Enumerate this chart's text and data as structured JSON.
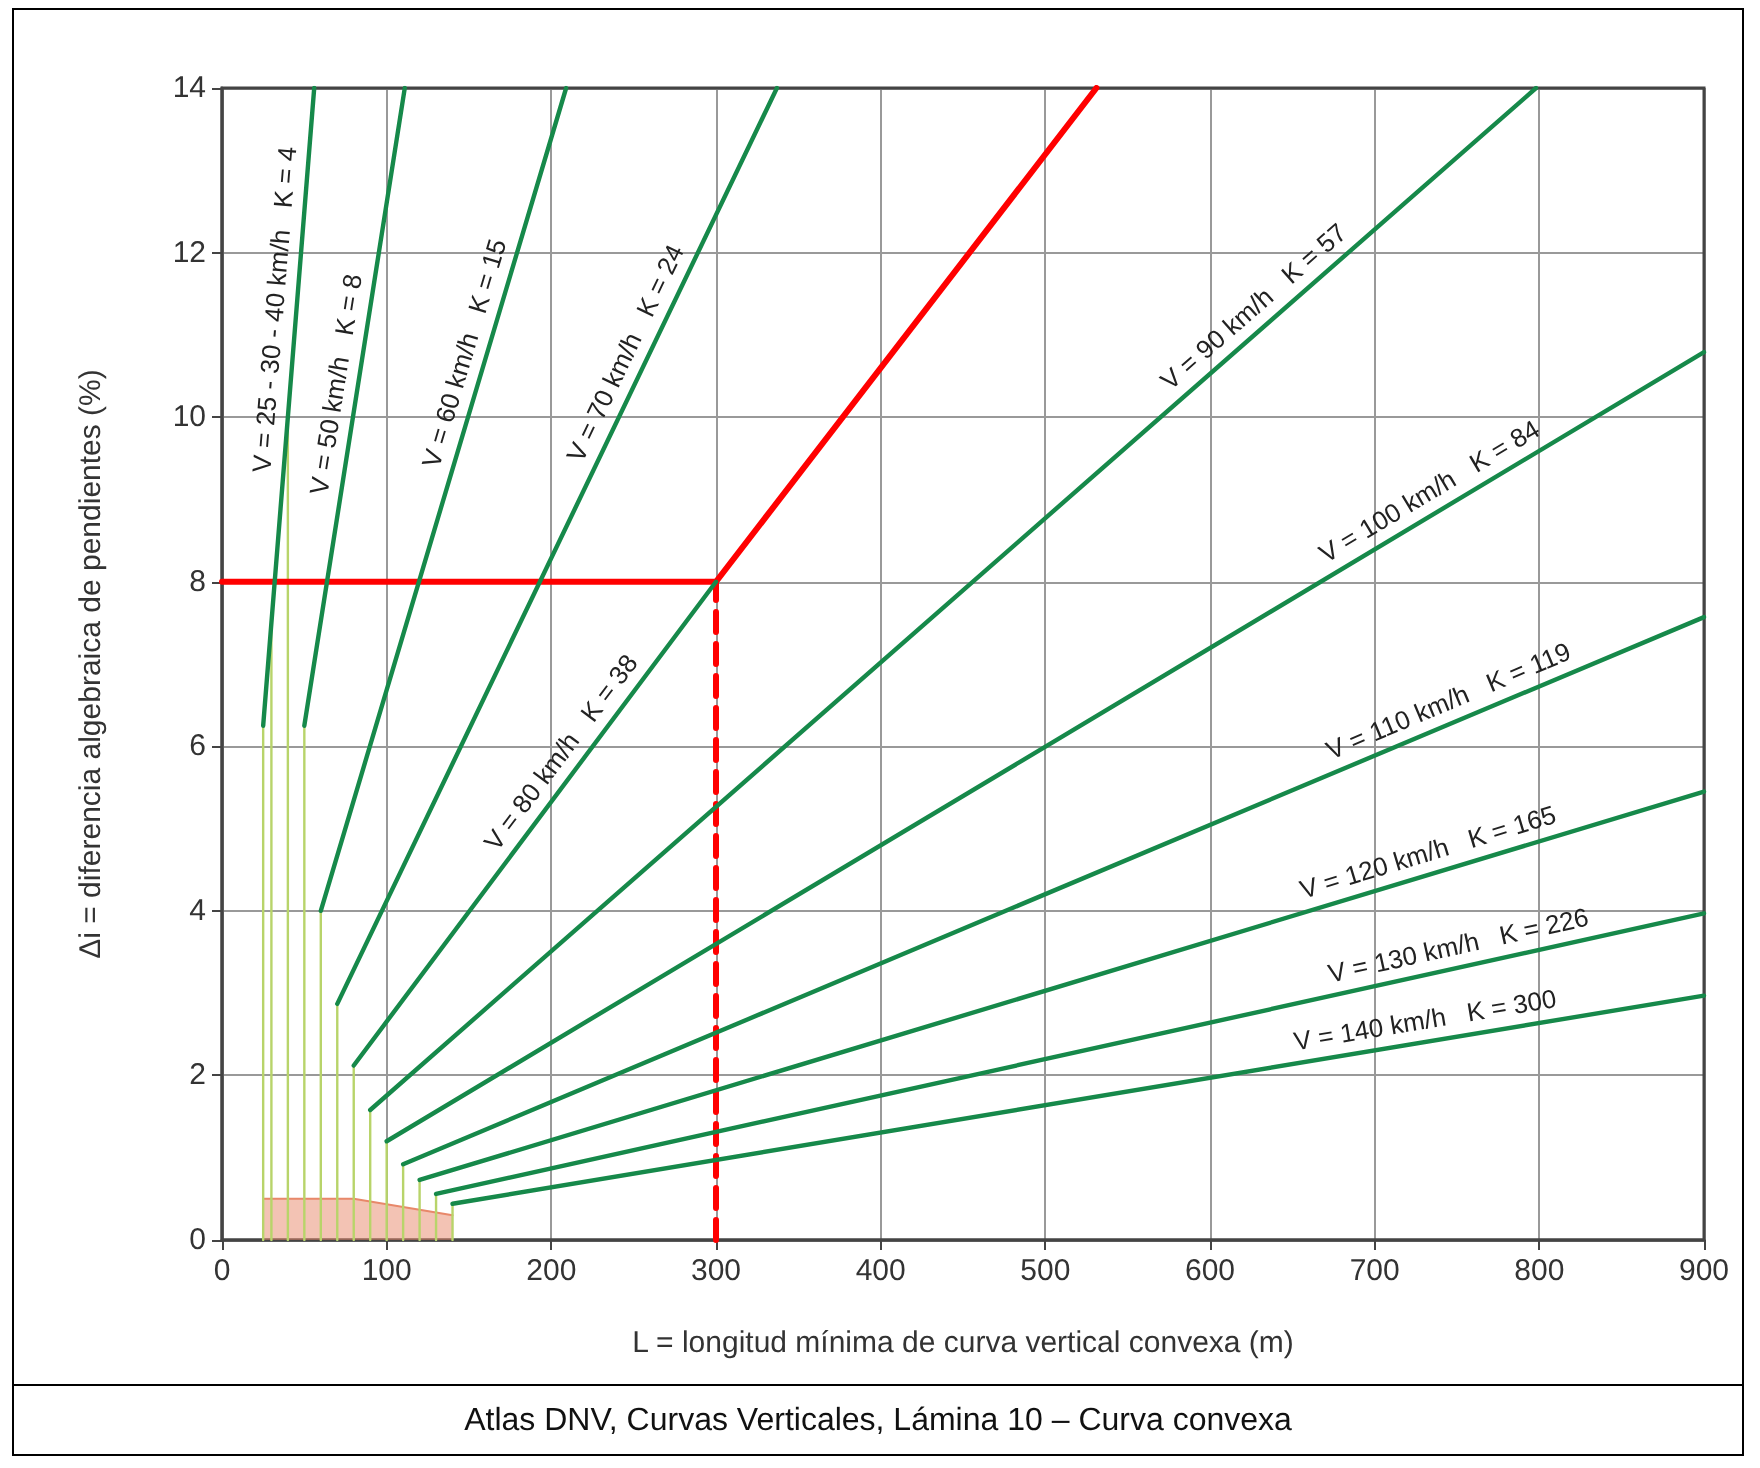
{
  "chart_data": {
    "type": "line",
    "xlabel": "L = longitud mínima de curva vertical convexa (m)",
    "ylabel": "Δi = diferencia algebraica de pendientes (%)",
    "xlim": [
      0,
      900
    ],
    "ylim": [
      0,
      14
    ],
    "xticks": [
      0,
      100,
      200,
      300,
      400,
      500,
      600,
      700,
      800,
      900
    ],
    "yticks": [
      0,
      2,
      4,
      6,
      8,
      10,
      12,
      14
    ],
    "grid": true,
    "marker": "none",
    "line_style": "solid",
    "annotations": [
      "Atlas DNV, Curvas Verticales, Lámina 10 – Curva convexa"
    ],
    "series": [
      {
        "type": "area",
        "color": "#e8886a",
        "x": [
          25,
          80,
          140
        ],
        "values": [
          0.5,
          0.5,
          0.3
        ]
      },
      {
        "color": "#b8d46a",
        "x": [
          25,
          25
        ],
        "values": [
          6.25,
          0
        ]
      },
      {
        "color": "#b8d46a",
        "x": [
          30,
          30
        ],
        "values": [
          7.5,
          0
        ]
      },
      {
        "color": "#b8d46a",
        "x": [
          40,
          40
        ],
        "values": [
          10,
          0
        ]
      },
      {
        "color": "#b8d46a",
        "x": [
          50,
          50
        ],
        "values": [
          6.25,
          0
        ]
      },
      {
        "color": "#b8d46a",
        "x": [
          60,
          60
        ],
        "values": [
          4,
          0
        ]
      },
      {
        "color": "#b8d46a",
        "x": [
          70,
          70
        ],
        "values": [
          2.87,
          0
        ]
      },
      {
        "color": "#b8d46a",
        "x": [
          80,
          80
        ],
        "values": [
          2.12,
          0
        ]
      },
      {
        "color": "#b8d46a",
        "x": [
          90,
          90
        ],
        "values": [
          1.58,
          0
        ]
      },
      {
        "color": "#b8d46a",
        "x": [
          100,
          100
        ],
        "values": [
          1.2,
          0
        ]
      },
      {
        "color": "#b8d46a",
        "x": [
          110,
          110
        ],
        "values": [
          0.92,
          0
        ]
      },
      {
        "color": "#b8d46a",
        "x": [
          120,
          120
        ],
        "values": [
          0.73,
          0
        ]
      },
      {
        "color": "#b8d46a",
        "x": [
          130,
          130
        ],
        "values": [
          0.56,
          0
        ]
      },
      {
        "color": "#b8d46a",
        "x": [
          140,
          140
        ],
        "values": [
          0.44,
          0
        ]
      },
      {
        "name": "V = 25 - 30 - 40 km/h   K = 4",
        "color": "#16894a",
        "x": [
          25,
          56
        ],
        "values": [
          6.25,
          14
        ]
      },
      {
        "name": "V = 50 km/h   K = 8",
        "color": "#16894a",
        "x": [
          50,
          111
        ],
        "values": [
          6.25,
          14
        ]
      },
      {
        "name": "V = 60 km/h   K = 15",
        "color": "#16894a",
        "x": [
          60,
          209
        ],
        "values": [
          4,
          14
        ]
      },
      {
        "name": "V = 70 km/h   K = 24",
        "color": "#16894a",
        "x": [
          70,
          337
        ],
        "values": [
          2.87,
          14
        ]
      },
      {
        "name": "V = 80 km/h   K = 38",
        "color": "#16894a",
        "x": [
          80,
          300
        ],
        "values": [
          2.12,
          8
        ]
      },
      {
        "name": "V = 90 km/h   K = 57",
        "color": "#16894a",
        "x": [
          90,
          798
        ],
        "values": [
          1.58,
          14
        ]
      },
      {
        "name": "V = 100 km/h   K = 84",
        "color": "#16894a",
        "x": [
          100,
          900
        ],
        "values": [
          1.2,
          10.79
        ]
      },
      {
        "name": "V = 110 km/h   K = 119",
        "color": "#16894a",
        "x": [
          110,
          900
        ],
        "values": [
          0.92,
          7.57
        ]
      },
      {
        "name": "V = 120 km/h   K = 165",
        "color": "#16894a",
        "x": [
          120,
          900
        ],
        "values": [
          0.73,
          5.45
        ]
      },
      {
        "name": "V = 130 km/h   K = 226",
        "color": "#16894a",
        "x": [
          130,
          900
        ],
        "values": [
          0.56,
          3.97
        ]
      },
      {
        "name": "V = 140 km/h   K = 300",
        "color": "#16894a",
        "x": [
          140,
          900
        ],
        "values": [
          0.44,
          2.97
        ]
      },
      {
        "color": "#ff0000",
        "x": [
          0,
          300
        ],
        "values": [
          8,
          8
        ]
      },
      {
        "color": "#ff0000",
        "x": [
          300,
          531
        ],
        "values": [
          8,
          14
        ]
      },
      {
        "color": "#ff0000",
        "line_style": "dashed",
        "x": [
          300,
          300
        ],
        "values": [
          0,
          8
        ]
      }
    ]
  }
}
